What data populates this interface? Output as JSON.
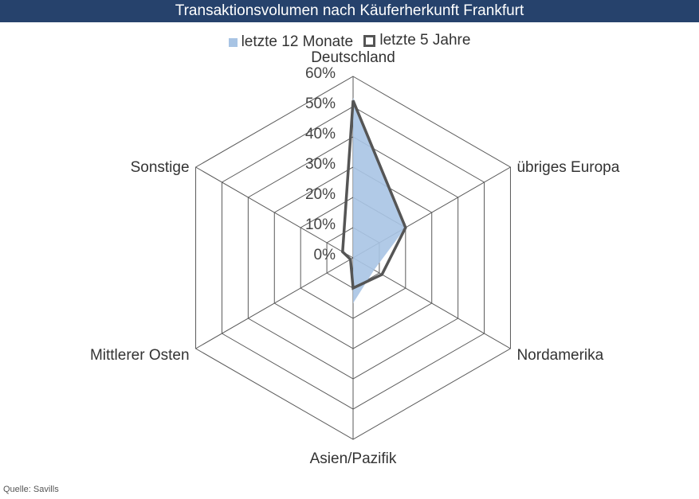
{
  "title": "Transaktionsvolumen nach Käuferherkunft Frankfurt",
  "source": "Quelle: Savills",
  "colors": {
    "title_bg": "#26426c",
    "series_fill": "#a8c4e4",
    "series_line": "#555555",
    "grid": "#595959"
  },
  "chart_data": {
    "type": "radar",
    "categories": [
      "Deutschland",
      "übriges Europa",
      "Nordamerika",
      "Asien/Pazifik",
      "Mittlerer Osten",
      "Sonstige"
    ],
    "ticks": [
      "0%",
      "10%",
      "20%",
      "30%",
      "40%",
      "50%",
      "60%"
    ],
    "rlim": [
      0,
      60
    ],
    "legend_position": "top",
    "grid": true,
    "series": [
      {
        "name": "letzte 12 Monate",
        "style": "filled",
        "values": [
          53,
          20,
          8,
          15,
          0,
          0
        ]
      },
      {
        "name": "letzte 5 Jahre",
        "style": "line",
        "values": [
          52,
          20,
          11,
          10,
          1,
          4
        ]
      }
    ]
  }
}
